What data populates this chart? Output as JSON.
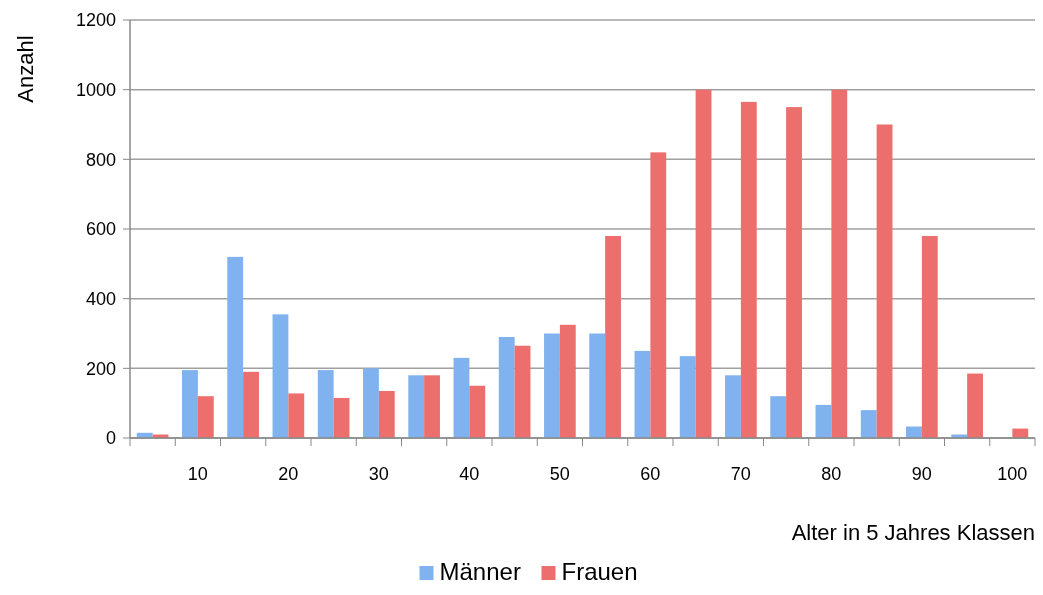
{
  "chart_data": {
    "type": "bar",
    "xlabel": "Alter in 5 Jahres Klassen",
    "ylabel": "Anzahl",
    "categories": [
      null,
      "10",
      null,
      "20",
      null,
      "30",
      null,
      "40",
      null,
      "50",
      null,
      "60",
      null,
      "70",
      null,
      "80",
      null,
      "90",
      null,
      "100"
    ],
    "series": [
      {
        "name": "Männer",
        "color": "#7fb2ee",
        "values": [
          15,
          195,
          520,
          355,
          195,
          200,
          180,
          230,
          290,
          300,
          300,
          250,
          235,
          180,
          120,
          95,
          80,
          33,
          10,
          null
        ]
      },
      {
        "name": "Frauen",
        "color": "#ec6f6d",
        "values": [
          10,
          120,
          190,
          128,
          115,
          135,
          180,
          150,
          265,
          325,
          580,
          820,
          1000,
          965,
          950,
          1000,
          900,
          580,
          185,
          27
        ]
      }
    ],
    "ylim": [
      0,
      1200
    ],
    "yticks": [
      0,
      200,
      400,
      600,
      800,
      1000,
      1200
    ],
    "grid": "y",
    "legend": "bottom"
  }
}
